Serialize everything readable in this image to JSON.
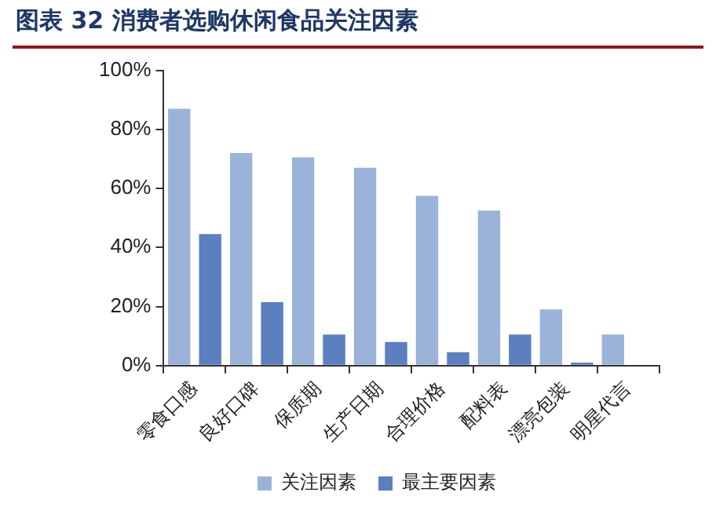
{
  "chart_data": {
    "type": "bar",
    "title": "图表 32 消费者选购休闲食品关注因素",
    "categories": [
      "零食口感",
      "良好口碑",
      "保质期",
      "生产日期",
      "合理价格",
      "配料表",
      "漂亮包装",
      "明星代言"
    ],
    "series": [
      {
        "name": "关注因素",
        "color": "#9bb3d9",
        "values": [
          87,
          72,
          70.5,
          67,
          57.5,
          52.5,
          19,
          10.5
        ]
      },
      {
        "name": "最主要因素",
        "color": "#5b7fbf",
        "values": [
          44.5,
          21.5,
          10.5,
          8,
          4.5,
          10.5,
          1,
          0
        ]
      }
    ],
    "ylim": [
      0,
      100
    ],
    "yticks": [
      {
        "value": 0,
        "label": "0%"
      },
      {
        "value": 20,
        "label": "20%"
      },
      {
        "value": 40,
        "label": "40%"
      },
      {
        "value": 60,
        "label": "60%"
      },
      {
        "value": 80,
        "label": "80%"
      },
      {
        "value": 100,
        "label": "100%"
      }
    ],
    "grid": false,
    "legend": "bottom"
  }
}
